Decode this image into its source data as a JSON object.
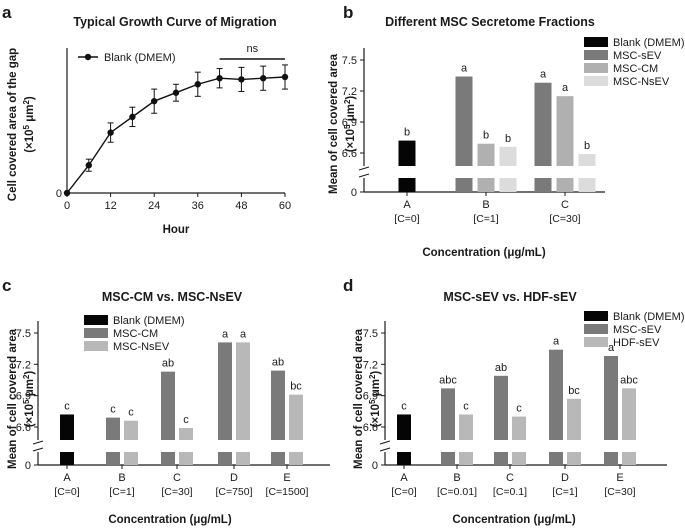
{
  "chart_data": [
    {
      "id": "a",
      "panel_label": "a",
      "type": "line",
      "title": "Typical Growth Curve of Migration",
      "ylabel": "Cell covered area of the gap",
      "ylabel_unit": [
        "(×10",
        "5",
        " μm",
        "2",
        ")"
      ],
      "xlabel": "Hour",
      "xlim": [
        0,
        60
      ],
      "ylim": [
        0,
        12
      ],
      "xticks": [
        0,
        12,
        24,
        36,
        48,
        60
      ],
      "legend": [
        "Blank (DMEM)"
      ],
      "series": [
        {
          "name": "Blank (DMEM)",
          "x": [
            0,
            6,
            12,
            18,
            24,
            30,
            36,
            42,
            48,
            54,
            60
          ],
          "y": [
            0,
            2.3,
            5.0,
            6.3,
            7.6,
            8.3,
            9.0,
            9.5,
            9.4,
            9.5,
            9.6
          ],
          "err": [
            0,
            0.5,
            0.8,
            0.8,
            1.0,
            0.7,
            1.0,
            0.8,
            1.0,
            1.0,
            1.0
          ]
        }
      ],
      "annotation": {
        "text": "ns",
        "x_from": 42,
        "x_to": 60
      }
    },
    {
      "id": "b",
      "panel_label": "b",
      "type": "bar",
      "title": "Different MSC Secretome Fractions",
      "ylabel": "Mean of cell covered area",
      "ylabel_unit": [
        "(×10",
        "5",
        " μm",
        "2",
        ")"
      ],
      "xlabel": "Concentration (μg/mL)",
      "yticks": [
        0,
        6.6,
        6.9,
        7.2,
        7.5
      ],
      "ybreak": [
        0.3,
        6.45
      ],
      "categories": [
        "A",
        "B",
        "C"
      ],
      "sublabels": [
        "[C=0]",
        "[C=1]",
        "[C=30]"
      ],
      "legend": [
        "Blank (DMEM)",
        "MSC-sEV",
        "MSC-CM",
        "MSC-NsEV"
      ],
      "bars": [
        {
          "cat": 0,
          "series": 0,
          "value": 6.72,
          "letter": "b"
        },
        {
          "cat": 1,
          "series": 1,
          "value": 7.34,
          "letter": "a"
        },
        {
          "cat": 1,
          "series": 2,
          "value": 6.69,
          "letter": "b"
        },
        {
          "cat": 1,
          "series": 3,
          "value": 6.66,
          "letter": "b"
        },
        {
          "cat": 2,
          "series": 1,
          "value": 7.28,
          "letter": "a"
        },
        {
          "cat": 2,
          "series": 2,
          "value": 7.15,
          "letter": "a"
        },
        {
          "cat": 2,
          "series": 3,
          "value": 6.59,
          "letter": "b"
        }
      ]
    },
    {
      "id": "c",
      "panel_label": "c",
      "type": "bar",
      "title": "MSC-CM vs. MSC-NsEV",
      "ylabel": "Mean of cell covered area",
      "ylabel_unit": [
        "(×10",
        "5",
        " μm",
        "2",
        ")"
      ],
      "xlabel": "Concentration (μg/mL)",
      "yticks": [
        0,
        6.6,
        6.9,
        7.2,
        7.5
      ],
      "ybreak": [
        0.3,
        6.45
      ],
      "categories": [
        "A",
        "B",
        "C",
        "D",
        "E"
      ],
      "sublabels": [
        "[C=0]",
        "[C=1]",
        "[C=30]",
        "[C=750]",
        "[C=1500]"
      ],
      "legend": [
        "Blank (DMEM)",
        "MSC-CM",
        "MSC-NsEV"
      ],
      "bars": [
        {
          "cat": 0,
          "series": 0,
          "value": 6.72,
          "letter": "c"
        },
        {
          "cat": 1,
          "series": 1,
          "value": 6.69,
          "letter": "c"
        },
        {
          "cat": 1,
          "series": 2,
          "value": 6.66,
          "letter": "c"
        },
        {
          "cat": 2,
          "series": 1,
          "value": 7.13,
          "letter": "ab"
        },
        {
          "cat": 2,
          "series": 2,
          "value": 6.59,
          "letter": "c"
        },
        {
          "cat": 3,
          "series": 1,
          "value": 7.41,
          "letter": "a"
        },
        {
          "cat": 3,
          "series": 2,
          "value": 7.41,
          "letter": "a"
        },
        {
          "cat": 4,
          "series": 1,
          "value": 7.14,
          "letter": "ab"
        },
        {
          "cat": 4,
          "series": 2,
          "value": 6.91,
          "letter": "bc"
        }
      ]
    },
    {
      "id": "d",
      "panel_label": "d",
      "type": "bar",
      "title": "MSC-sEV vs. HDF-sEV",
      "ylabel": "Mean of cell covered area",
      "ylabel_unit": [
        "(×10",
        "5",
        " μm",
        "2",
        ")"
      ],
      "xlabel": "Concentration (μg/mL)",
      "yticks": [
        0,
        6.6,
        6.9,
        7.2,
        7.5
      ],
      "ybreak": [
        0.3,
        6.45
      ],
      "categories": [
        "A",
        "B",
        "C",
        "D",
        "E"
      ],
      "sublabels": [
        "[C=0]",
        "[C=0.01]",
        "[C=0.1]",
        "[C=1]",
        "[C=30]"
      ],
      "legend": [
        "Blank (DMEM)",
        "MSC-sEV",
        "HDF-sEV"
      ],
      "bars": [
        {
          "cat": 0,
          "series": 0,
          "value": 6.72,
          "letter": "c"
        },
        {
          "cat": 1,
          "series": 1,
          "value": 6.97,
          "letter": "abc"
        },
        {
          "cat": 1,
          "series": 2,
          "value": 6.72,
          "letter": "c"
        },
        {
          "cat": 2,
          "series": 1,
          "value": 7.09,
          "letter": "ab"
        },
        {
          "cat": 2,
          "series": 2,
          "value": 6.7,
          "letter": "c"
        },
        {
          "cat": 3,
          "series": 1,
          "value": 7.34,
          "letter": "a"
        },
        {
          "cat": 3,
          "series": 2,
          "value": 6.87,
          "letter": "bc"
        },
        {
          "cat": 4,
          "series": 1,
          "value": 7.28,
          "letter": "a"
        },
        {
          "cat": 4,
          "series": 2,
          "value": 6.97,
          "letter": "abc"
        }
      ]
    }
  ],
  "colors": {
    "b": [
      "#050505",
      "#7a7a7a",
      "#b0b0b0",
      "#dcdcdc"
    ],
    "c": [
      "#050505",
      "#7a7a7a",
      "#b8b8b8"
    ],
    "d": [
      "#050505",
      "#7a7a7a",
      "#b8b8b8"
    ],
    "axis": "#1a1a1a"
  }
}
